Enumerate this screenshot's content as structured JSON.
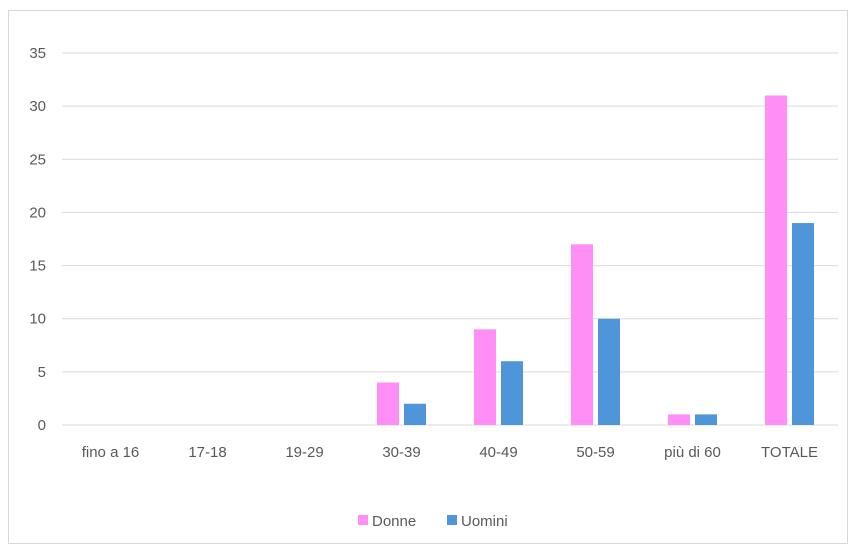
{
  "chart_data": {
    "type": "bar",
    "categories": [
      "fino a 16",
      "17-18",
      "19-29",
      "30-39",
      "40-49",
      "50-59",
      "più di 60",
      "TOTALE"
    ],
    "series": [
      {
        "name": "Donne",
        "color": "#ff8ff7",
        "values": [
          0,
          0,
          0,
          4,
          9,
          17,
          1,
          31
        ]
      },
      {
        "name": "Uomini",
        "color": "#4e95d9",
        "values": [
          0,
          0,
          0,
          2,
          6,
          10,
          1,
          19
        ]
      }
    ],
    "ylim": [
      0,
      35
    ],
    "yticks": [
      0,
      5,
      10,
      15,
      20,
      25,
      30,
      35
    ],
    "grid": true,
    "legend": "bottom-center",
    "title": "",
    "xlabel": "",
    "ylabel": ""
  }
}
